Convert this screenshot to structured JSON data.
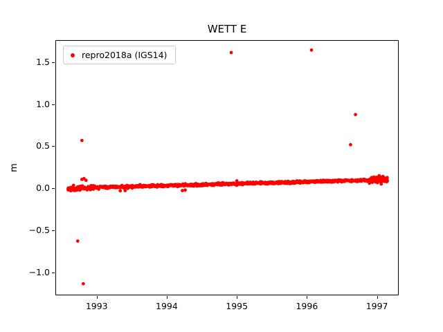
{
  "chart_data": {
    "type": "scatter",
    "title": "WETT E",
    "xlabel": "",
    "ylabel": "m",
    "xlim": [
      1992.41,
      1997.31
    ],
    "ylim": [
      -1.27,
      1.76
    ],
    "grid": false,
    "marker_color": "#ff0000",
    "legend": {
      "label": "repro2018a (IGS14)",
      "location": "upper left"
    },
    "xticks": [
      1993,
      1994,
      1995,
      1996,
      1997
    ],
    "xtick_labels": [
      "1993",
      "1994",
      "1995",
      "1996",
      "1997"
    ],
    "yticks": [
      -1.0,
      -0.5,
      0.0,
      0.5,
      1.0,
      1.5
    ],
    "ytick_labels": [
      "−1.0",
      "−0.5",
      "0.0",
      "0.5",
      "1.0",
      "1.5"
    ],
    "series": [
      {
        "name": "repro2018a (IGS14)",
        "band_segments": [
          {
            "x_start": 1992.58,
            "x_end": 1992.95,
            "y_start": -0.005,
            "y_end": 0.008,
            "n": 140,
            "noise_sd": 0.012
          },
          {
            "x_start": 1992.95,
            "x_end": 1996.9,
            "y_start": 0.008,
            "y_end": 0.098,
            "n": 1250,
            "noise_sd": 0.007
          },
          {
            "x_start": 1996.9,
            "x_end": 1997.16,
            "y_start": 0.098,
            "y_end": 0.105,
            "n": 130,
            "noise_sd": 0.016
          }
        ],
        "outliers": [
          [
            1992.62,
            -0.03
          ],
          [
            1992.66,
            0.035
          ],
          [
            1992.72,
            -0.63
          ],
          [
            1992.78,
            0.57
          ],
          [
            1992.8,
            -1.14
          ],
          [
            1992.78,
            0.105
          ],
          [
            1992.81,
            0.115
          ],
          [
            1992.84,
            0.095
          ],
          [
            1993.33,
            -0.03
          ],
          [
            1993.4,
            -0.028
          ],
          [
            1994.22,
            -0.028
          ],
          [
            1994.26,
            -0.022
          ],
          [
            1994.92,
            1.62
          ],
          [
            1995.0,
            0.088
          ],
          [
            1996.07,
            1.65
          ],
          [
            1996.63,
            0.52
          ],
          [
            1996.7,
            0.88
          ],
          [
            1997.04,
            0.15
          ],
          [
            1997.07,
            0.05
          ]
        ]
      }
    ]
  }
}
